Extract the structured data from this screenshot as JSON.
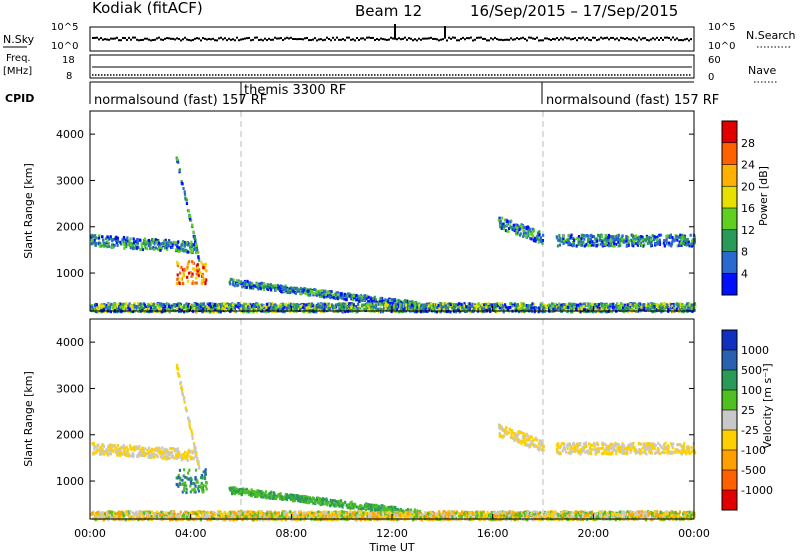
{
  "header": {
    "station": "Kodiak (fitACF)",
    "beam": "Beam 12",
    "date_range": "16/Sep/2015 – 17/Sep/2015"
  },
  "top_panels": {
    "nsky": {
      "label": "N.Sky",
      "tick_top": "10^5",
      "tick_bottom": "10^0"
    },
    "nsearch": {
      "label": "N.Search",
      "tick_top": "10^5",
      "tick_bottom": "10^0"
    },
    "freq": {
      "label_line1": "Freq.",
      "label_line2": "[MHz]",
      "ticks": [
        "18",
        "8"
      ]
    },
    "nave": {
      "label": "Nave",
      "ticks": [
        "60",
        "0"
      ]
    },
    "cpid": {
      "label": "CPID"
    }
  },
  "cpid_segments": [
    {
      "text": "normalsound (fast) 157 RF",
      "start_hour": 0
    },
    {
      "text": "themis 3300 RF",
      "start_hour": 6
    },
    {
      "text": "normalsound (fast) 157 RF",
      "start_hour": 18
    }
  ],
  "power_panel": {
    "colorbar_label": "Power [dB]",
    "colorbar_ticks": [
      "28",
      "24",
      "20",
      "16",
      "12",
      "8",
      "4"
    ],
    "colorbar_colors": [
      "#e00000",
      "#ff6000",
      "#ffb000",
      "#e8e000",
      "#60d020",
      "#2a9a58",
      "#2a6ad0",
      "#0010ff"
    ]
  },
  "velocity_panel": {
    "colorbar_label": "Velocity [m s⁻¹]",
    "colorbar_ticks": [
      "1000",
      "500",
      "100",
      "25",
      "-25",
      "-100",
      "-500",
      "-1000"
    ],
    "colorbar_colors": [
      "#1030c0",
      "#2a60b0",
      "#2a9a58",
      "#50c020",
      "#c8c8c8",
      "#ffd000",
      "#ffa000",
      "#ff6000",
      "#e00000"
    ]
  },
  "chart_data": {
    "type": "heatmap",
    "title": "Kodiak (fitACF) Beam 12 16/Sep/2015 – 17/Sep/2015",
    "xlabel": "Time UT",
    "ylabel": "Slant Range [km]",
    "x_ticks": [
      "00:00",
      "04:00",
      "08:00",
      "12:00",
      "16:00",
      "20:00",
      "00:00"
    ],
    "y_ticks": [
      "1000",
      "2000",
      "3000",
      "4000"
    ],
    "xlim_hours": [
      0,
      24
    ],
    "ylim_km": [
      180,
      4500
    ],
    "cpid_boundaries_hours": [
      6,
      18
    ],
    "echo_regions": [
      {
        "name": "band",
        "t_start": 0.0,
        "t_end": 4.2,
        "range_start": 1700,
        "range_end": 1550,
        "width": 120
      },
      {
        "name": "blob",
        "t_start": 3.4,
        "t_end": 4.6,
        "range_start": 1000,
        "range_end": 1000,
        "width": 250
      },
      {
        "name": "streak",
        "t_start": 3.4,
        "t_end": 4.3,
        "range_start": 3500,
        "range_end": 1300,
        "width": 60
      },
      {
        "name": "descending",
        "t_start": 5.5,
        "t_end": 13.0,
        "range_start": 800,
        "range_end": 300,
        "width": 70
      },
      {
        "name": "afternoon",
        "t_start": 16.2,
        "t_end": 18.0,
        "range_start": 2100,
        "range_end": 1750,
        "width": 130
      },
      {
        "name": "evening",
        "t_start": 18.5,
        "t_end": 24.0,
        "range_start": 1700,
        "range_end": 1700,
        "width": 120
      },
      {
        "name": "low_range",
        "t_start": 0.0,
        "t_end": 24.0,
        "range_start": 250,
        "range_end": 250,
        "width": 90
      }
    ]
  }
}
